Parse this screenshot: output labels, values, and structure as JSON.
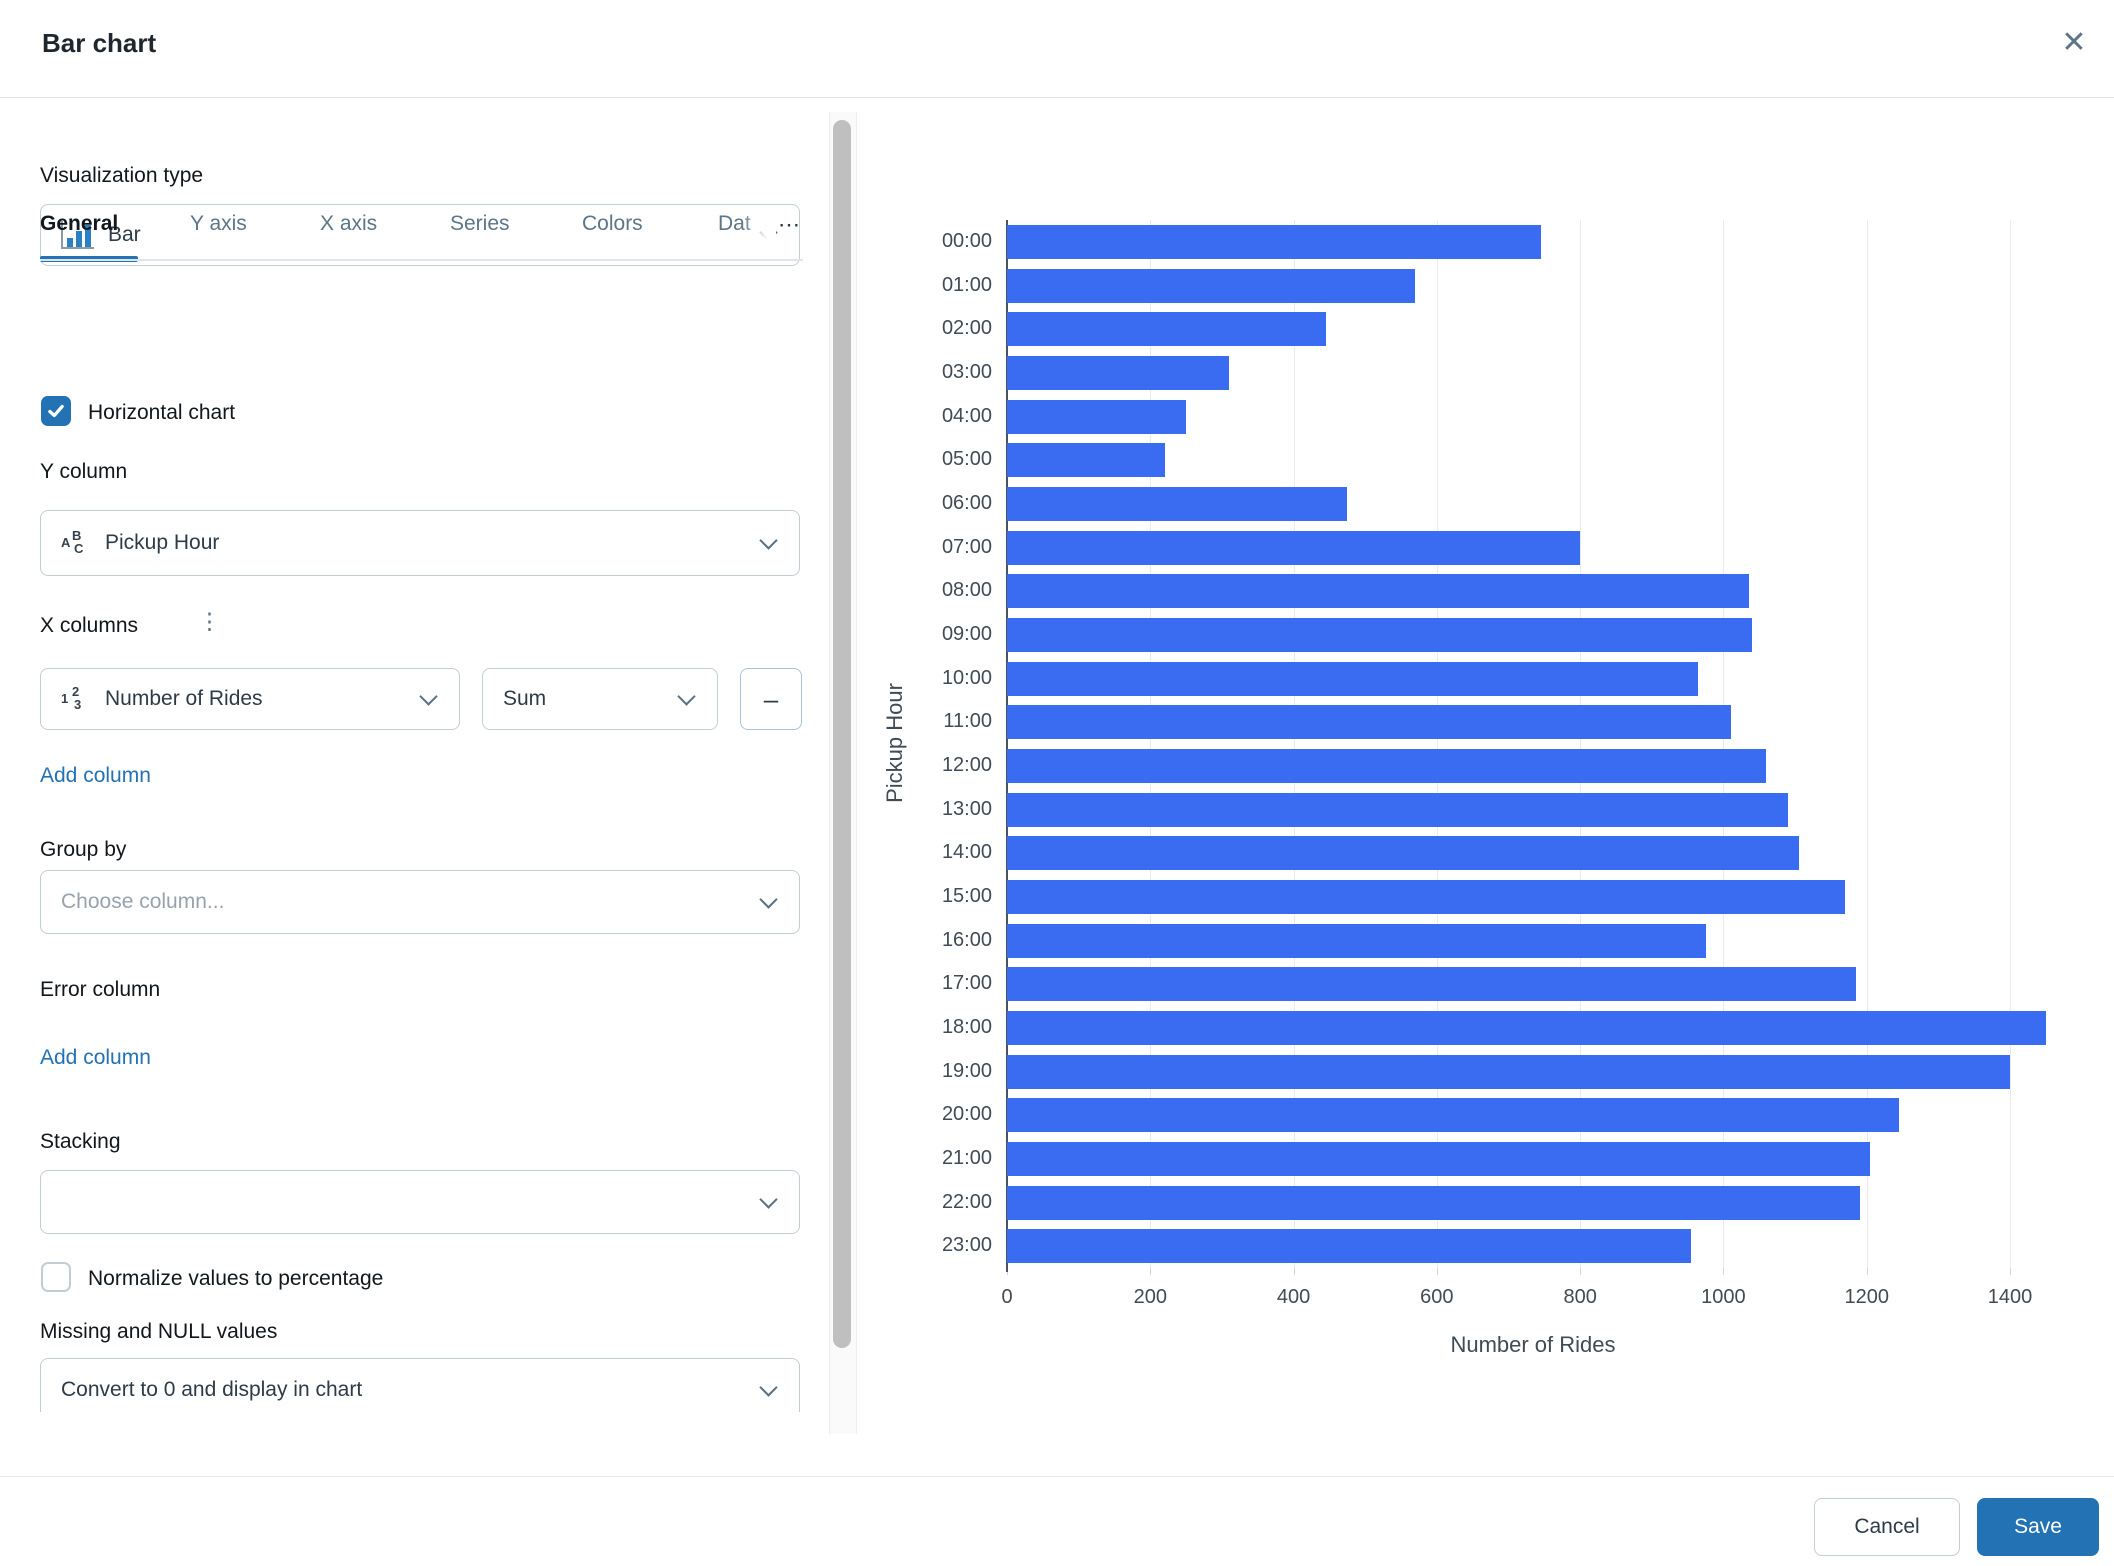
{
  "dialog": {
    "title": "Bar chart"
  },
  "icons": {
    "close": "✕",
    "overflow": "⋯",
    "kebab": "⋮",
    "minus": "–"
  },
  "viz_type": {
    "label": "Visualization type",
    "value": "Bar"
  },
  "tabs": {
    "active_index": 0,
    "items": [
      {
        "label": "General"
      },
      {
        "label": "Y axis"
      },
      {
        "label": "X axis"
      },
      {
        "label": "Series"
      },
      {
        "label": "Colors"
      },
      {
        "label": "Dat"
      }
    ]
  },
  "general": {
    "horizontal_chart": {
      "label": "Horizontal chart",
      "checked": true
    },
    "y_column": {
      "label": "Y column",
      "value": "Pickup Hour",
      "icon_chars": [
        "A",
        "B",
        "C"
      ]
    },
    "x_columns": {
      "label": "X columns",
      "column": "Number of Rides",
      "icon_chars": [
        "1",
        "2",
        "3"
      ],
      "aggregation": "Sum",
      "remove_label": "–",
      "add_label": "Add column"
    },
    "group_by": {
      "label": "Group by",
      "placeholder": "Choose column..."
    },
    "error_column": {
      "label": "Error column",
      "add_label": "Add column"
    },
    "stacking": {
      "label": "Stacking",
      "value": ""
    },
    "normalize": {
      "label": "Normalize values to percentage",
      "checked": false
    },
    "missing_null": {
      "label": "Missing and NULL values",
      "value": "Convert to 0 and display in chart"
    }
  },
  "footer": {
    "cancel_label": "Cancel",
    "save_label": "Save"
  },
  "colors": {
    "accent": "#2272B4",
    "link": "#2272B4",
    "bar": "#3A6CF2",
    "grid": "#E8EAED",
    "tab_inactive": "#5C7589"
  },
  "chart_data": {
    "type": "bar",
    "orientation": "horizontal",
    "title": "",
    "xlabel": "Number of Rides",
    "ylabel": "Pickup Hour",
    "categories": [
      "00:00",
      "01:00",
      "02:00",
      "03:00",
      "04:00",
      "05:00",
      "06:00",
      "07:00",
      "08:00",
      "09:00",
      "10:00",
      "11:00",
      "12:00",
      "13:00",
      "14:00",
      "15:00",
      "16:00",
      "17:00",
      "18:00",
      "19:00",
      "20:00",
      "21:00",
      "22:00",
      "23:00"
    ],
    "values": [
      745,
      570,
      445,
      310,
      250,
      220,
      475,
      800,
      1035,
      1040,
      965,
      1010,
      1060,
      1090,
      1105,
      1170,
      975,
      1185,
      1450,
      1400,
      1245,
      1205,
      1190,
      955
    ],
    "xticks": [
      0,
      200,
      400,
      600,
      800,
      1000,
      1200,
      1400
    ],
    "xlim": [
      0,
      1472
    ],
    "grid": "vertical-only",
    "legend": "none",
    "bar_color": "#3A6CF2"
  }
}
